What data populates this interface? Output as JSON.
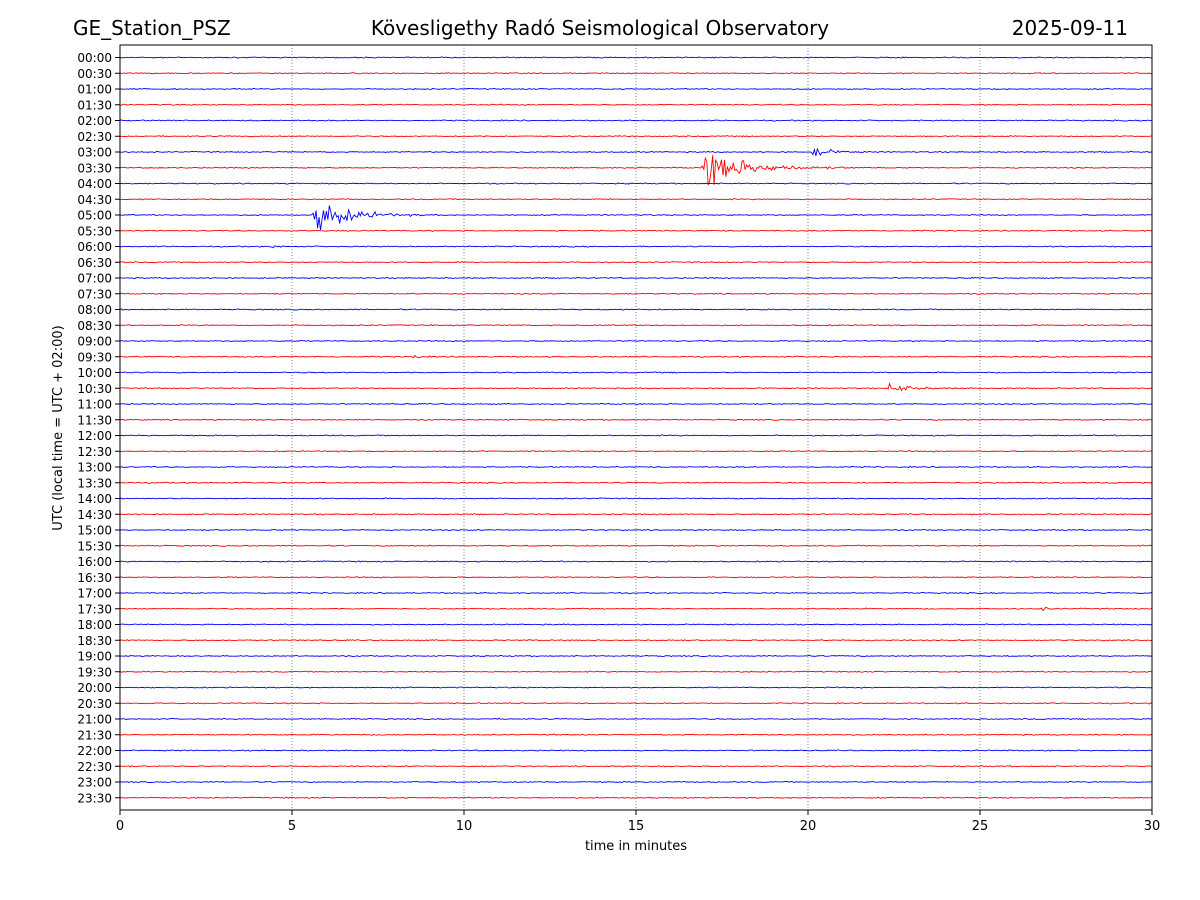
{
  "header": {
    "station": "GE_Station_PSZ",
    "title": "Kövesligethy Radó Seismological Observatory",
    "date": "2025-09-11"
  },
  "chart_data": {
    "type": "line",
    "title": "Kövesligethy Radó Seismological Observatory",
    "xlabel": "time in minutes",
    "ylabel": "UTC (local time = UTC + 02:00)",
    "xlim": [
      0,
      30
    ],
    "xticks": [
      0,
      5,
      10,
      15,
      20,
      25,
      30
    ],
    "grid_x": true,
    "row_labels": [
      "00:00",
      "00:30",
      "01:00",
      "01:30",
      "02:00",
      "02:30",
      "03:00",
      "03:30",
      "04:00",
      "04:30",
      "05:00",
      "05:30",
      "06:00",
      "06:30",
      "07:00",
      "07:30",
      "08:00",
      "08:30",
      "09:00",
      "09:30",
      "10:00",
      "10:30",
      "11:00",
      "11:30",
      "12:00",
      "12:30",
      "13:00",
      "13:30",
      "14:00",
      "14:30",
      "15:00",
      "15:30",
      "16:00",
      "16:30",
      "17:00",
      "17:30",
      "18:00",
      "18:30",
      "19:00",
      "19:30",
      "20:00",
      "20:30",
      "21:00",
      "21:30",
      "22:00",
      "22:30",
      "23:00",
      "23:30"
    ],
    "trace_colors": [
      "#0000ff",
      "#ff0000"
    ],
    "events": [
      {
        "row": "03:00",
        "start_min": 20.1,
        "end_min": 22.5,
        "peak_amp": 0.35
      },
      {
        "row": "03:30",
        "start_min": 16.9,
        "end_min": 21.8,
        "peak_amp": 1.6
      },
      {
        "row": "05:00",
        "start_min": 5.6,
        "end_min": 9.5,
        "peak_amp": 1.4
      },
      {
        "row": "06:00",
        "start_min": 4.4,
        "end_min": 5.0,
        "peak_amp": 0.3
      },
      {
        "row": "09:30",
        "start_min": 8.5,
        "end_min": 8.9,
        "peak_amp": 0.35
      },
      {
        "row": "10:30",
        "start_min": 22.3,
        "end_min": 24.5,
        "peak_amp": 0.5
      },
      {
        "row": "17:30",
        "start_min": 26.7,
        "end_min": 27.4,
        "peak_amp": 0.25
      }
    ]
  }
}
